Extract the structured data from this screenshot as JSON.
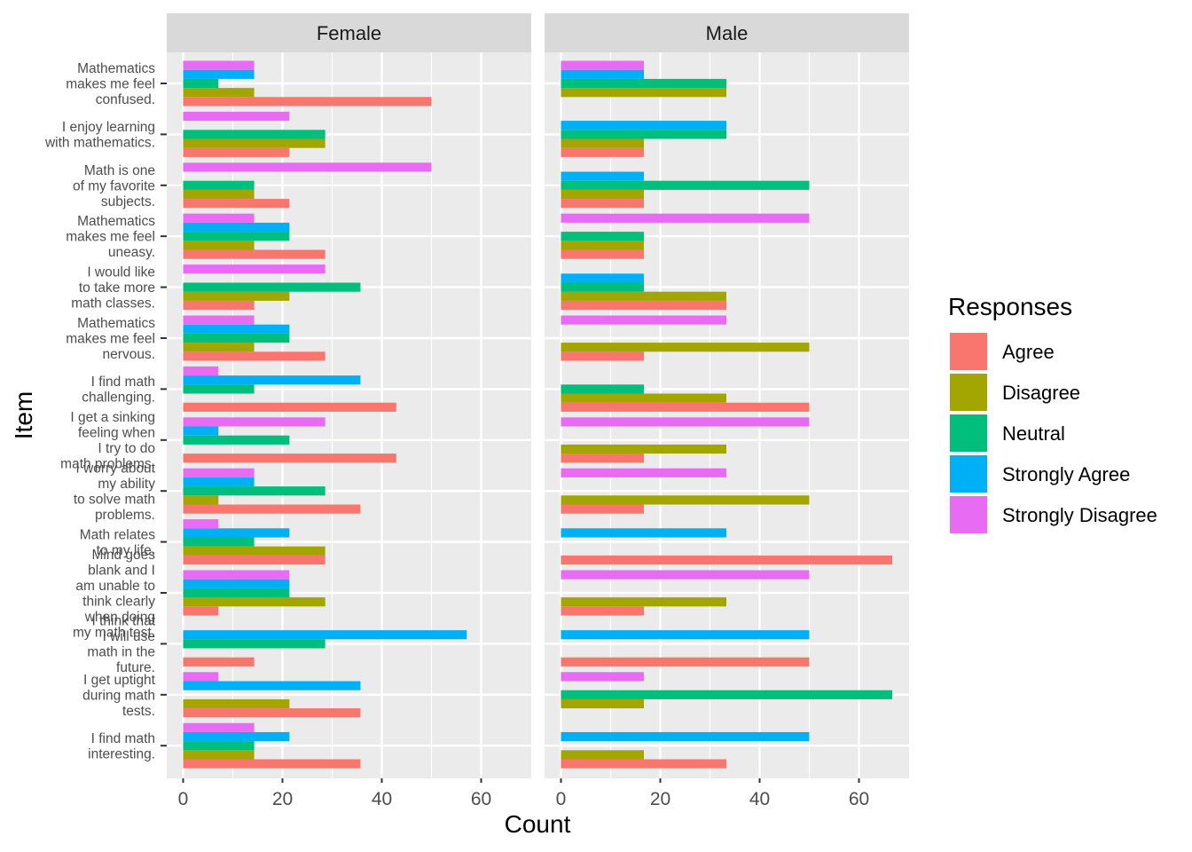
{
  "chart_data": {
    "type": "bar",
    "orientation": "horizontal",
    "xlabel": "Count",
    "ylabel": "Item",
    "xlim": [
      0,
      70
    ],
    "x_ticks": [
      0,
      20,
      40,
      60
    ],
    "grid": true,
    "legend": {
      "title": "Responses",
      "position": "right",
      "entries": [
        {
          "name": "Agree",
          "color": "#F8766D"
        },
        {
          "name": "Disagree",
          "color": "#A3A500"
        },
        {
          "name": "Neutral",
          "color": "#00BF7D"
        },
        {
          "name": "Strongly Agree",
          "color": "#00B0F6"
        },
        {
          "name": "Strongly Disagree",
          "color": "#E76BF3"
        }
      ]
    },
    "items": [
      {
        "key": "confused",
        "lines": [
          "Mathematics",
          "makes me feel",
          "confused."
        ]
      },
      {
        "key": "enjoy",
        "lines": [
          "I enjoy learning",
          "with mathematics."
        ]
      },
      {
        "key": "favorite",
        "lines": [
          "Math is one",
          "of my favorite",
          "subjects."
        ]
      },
      {
        "key": "uneasy",
        "lines": [
          "Mathematics",
          "makes me feel",
          "uneasy."
        ]
      },
      {
        "key": "more_classes",
        "lines": [
          "I would like",
          "to take more",
          "math classes."
        ]
      },
      {
        "key": "nervous",
        "lines": [
          "Mathematics",
          "makes me feel",
          "nervous."
        ]
      },
      {
        "key": "challenging",
        "lines": [
          "I find math",
          "challenging."
        ]
      },
      {
        "key": "sinking",
        "lines": [
          "I get a sinking",
          "feeling when",
          "I try to do",
          "math problems."
        ]
      },
      {
        "key": "worry",
        "lines": [
          "I worry about",
          "my ability",
          "to solve math",
          "problems."
        ]
      },
      {
        "key": "relates",
        "lines": [
          "Math relates",
          "to my life."
        ]
      },
      {
        "key": "blank",
        "lines": [
          "Mind goes",
          "blank and I",
          "am unable to",
          "think clearly",
          "when doing",
          "my math test."
        ]
      },
      {
        "key": "use_future",
        "lines": [
          "I think that",
          "I will use",
          "math in the",
          "future."
        ]
      },
      {
        "key": "uptight",
        "lines": [
          "I get uptight",
          "during math",
          "tests."
        ]
      },
      {
        "key": "interesting",
        "lines": [
          "I find math",
          "interesting."
        ]
      }
    ],
    "panels": [
      {
        "name": "Female",
        "values": {
          "confused": {
            "Agree": 50,
            "Disagree": 14.3,
            "Neutral": 7.1,
            "Strongly Agree": 14.3,
            "Strongly Disagree": 14.3
          },
          "enjoy": {
            "Agree": 21.4,
            "Disagree": 28.6,
            "Neutral": 28.6,
            "Strongly Disagree": 21.4
          },
          "favorite": {
            "Agree": 21.4,
            "Disagree": 14.3,
            "Neutral": 14.3,
            "Strongly Disagree": 50
          },
          "uneasy": {
            "Agree": 28.6,
            "Disagree": 14.3,
            "Neutral": 21.4,
            "Strongly Agree": 21.4,
            "Strongly Disagree": 14.3
          },
          "more_classes": {
            "Agree": 14.3,
            "Disagree": 21.4,
            "Neutral": 35.7,
            "Strongly Disagree": 28.6
          },
          "nervous": {
            "Agree": 28.6,
            "Disagree": 14.3,
            "Neutral": 21.4,
            "Strongly Agree": 21.4,
            "Strongly Disagree": 14.3
          },
          "challenging": {
            "Agree": 42.9,
            "Neutral": 14.3,
            "Strongly Agree": 35.7,
            "Strongly Disagree": 7.1
          },
          "sinking": {
            "Agree": 42.9,
            "Neutral": 21.4,
            "Strongly Agree": 7.1,
            "Strongly Disagree": 28.6
          },
          "worry": {
            "Agree": 35.7,
            "Disagree": 7.1,
            "Neutral": 28.6,
            "Strongly Agree": 14.3,
            "Strongly Disagree": 14.3
          },
          "relates": {
            "Agree": 28.6,
            "Disagree": 28.6,
            "Neutral": 14.3,
            "Strongly Agree": 21.4,
            "Strongly Disagree": 7.1
          },
          "blank": {
            "Agree": 7.1,
            "Disagree": 28.6,
            "Neutral": 21.4,
            "Strongly Agree": 21.4,
            "Strongly Disagree": 21.4
          },
          "use_future": {
            "Agree": 14.3,
            "Neutral": 28.6,
            "Strongly Agree": 57.1
          },
          "uptight": {
            "Agree": 35.7,
            "Disagree": 21.4,
            "Strongly Agree": 35.7,
            "Strongly Disagree": 7.1
          },
          "interesting": {
            "Agree": 35.7,
            "Disagree": 14.3,
            "Neutral": 14.3,
            "Strongly Agree": 21.4,
            "Strongly Disagree": 14.3
          }
        }
      },
      {
        "name": "Male",
        "values": {
          "confused": {
            "Disagree": 33.3,
            "Neutral": 33.3,
            "Strongly Agree": 16.7,
            "Strongly Disagree": 16.7
          },
          "enjoy": {
            "Agree": 16.7,
            "Disagree": 16.7,
            "Neutral": 33.3,
            "Strongly Agree": 33.3
          },
          "favorite": {
            "Agree": 16.7,
            "Disagree": 16.7,
            "Neutral": 50,
            "Strongly Agree": 16.7
          },
          "uneasy": {
            "Agree": 16.7,
            "Disagree": 16.7,
            "Neutral": 16.7,
            "Strongly Disagree": 50
          },
          "more_classes": {
            "Agree": 33.3,
            "Disagree": 33.3,
            "Neutral": 16.7,
            "Strongly Agree": 16.7
          },
          "nervous": {
            "Agree": 16.7,
            "Disagree": 50,
            "Strongly Disagree": 33.3
          },
          "challenging": {
            "Agree": 50,
            "Disagree": 33.3,
            "Neutral": 16.7
          },
          "sinking": {
            "Agree": 16.7,
            "Disagree": 33.3,
            "Strongly Disagree": 50
          },
          "worry": {
            "Agree": 16.7,
            "Disagree": 50,
            "Strongly Disagree": 33.3
          },
          "relates": {
            "Agree": 66.7,
            "Strongly Agree": 33.3
          },
          "blank": {
            "Agree": 16.7,
            "Disagree": 33.3,
            "Strongly Disagree": 50
          },
          "use_future": {
            "Agree": 50,
            "Strongly Agree": 50
          },
          "uptight": {
            "Disagree": 16.7,
            "Neutral": 66.7,
            "Strongly Disagree": 16.7
          },
          "interesting": {
            "Agree": 33.3,
            "Disagree": 16.7,
            "Strongly Agree": 50
          }
        }
      }
    ]
  }
}
